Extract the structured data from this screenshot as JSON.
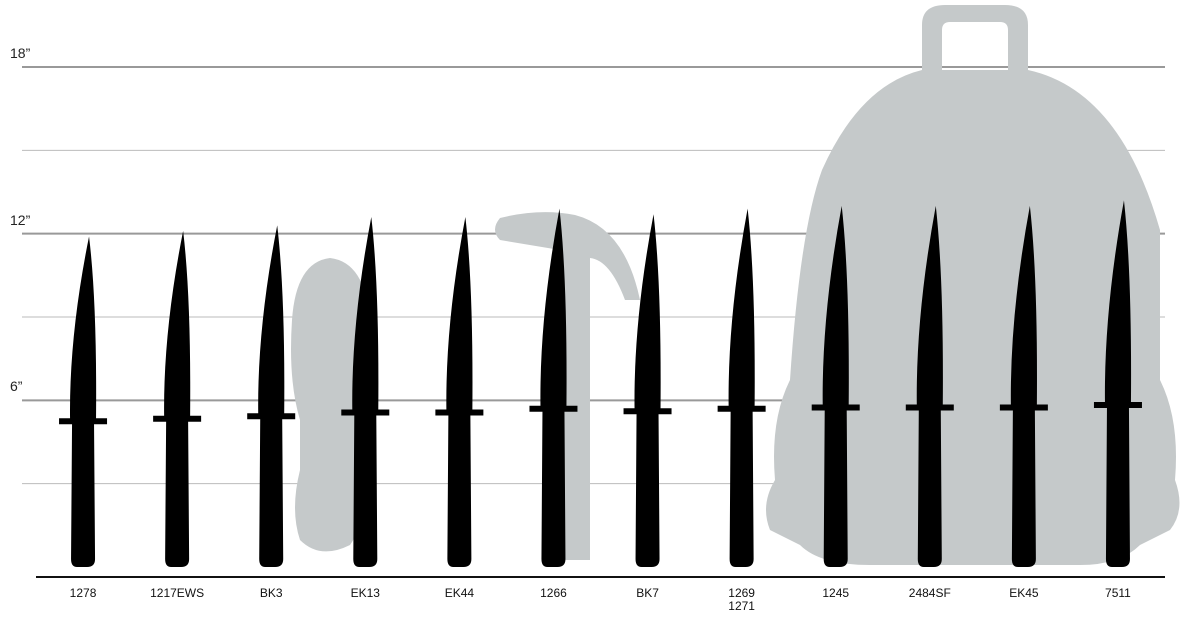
{
  "chart_data": {
    "type": "knife",
    "categories": [
      "1278",
      "1217EWS",
      "BK3",
      "EK13",
      "EK44",
      "1266",
      "BK7",
      "1269\n1271",
      "1245",
      "2484SF",
      "EK45",
      "7511"
    ],
    "values": [
      11.9,
      12.1,
      12.3,
      12.6,
      12.6,
      12.9,
      12.7,
      12.9,
      13.0,
      13.0,
      13.0,
      13.2
    ],
    "color": "#000000",
    "ylim": [
      0,
      18
    ],
    "yticks": [
      {
        "value": 6,
        "label": "6”"
      },
      {
        "value": 12,
        "label": "12”"
      },
      {
        "value": 18,
        "label": "18”"
      }
    ],
    "minor_yticks": [
      3,
      9,
      15
    ],
    "grid": true
  }
}
